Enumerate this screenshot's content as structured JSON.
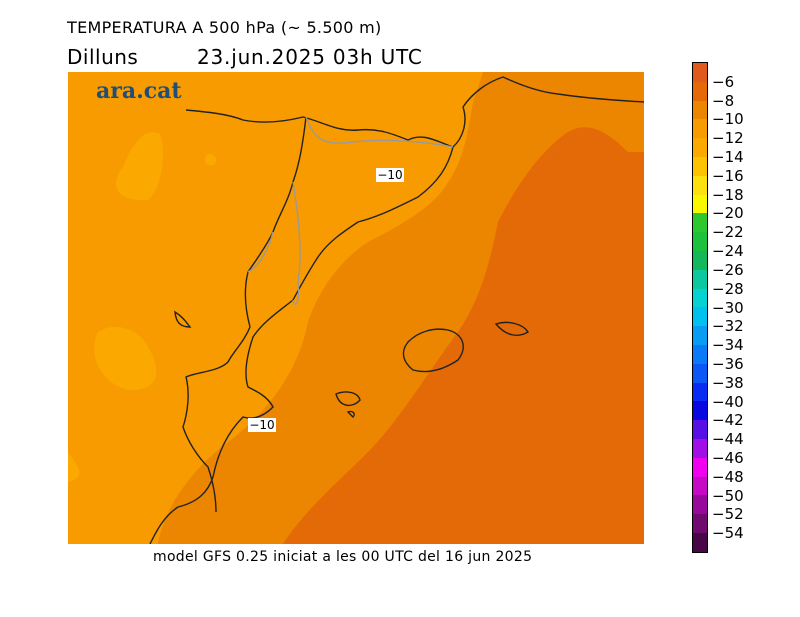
{
  "header": {
    "title": "TEMPERATURA A 500 hPa (~ 5.500 m)",
    "day": "Dilluns",
    "datetime": "23.jun.2025  03h  UTC"
  },
  "map": {
    "logo": "ara.cat",
    "contour_labels": [
      "−10",
      "−10"
    ]
  },
  "footer": {
    "model_note": "model GFS 0.25 iniciat a les 00 UTC del 16 jun 2025"
  },
  "colorbar": {
    "labels": [
      "−6",
      "−8",
      "−10",
      "−12",
      "−14",
      "−16",
      "−18",
      "−20",
      "−22",
      "−24",
      "−26",
      "−28",
      "−30",
      "−32",
      "−34",
      "−36",
      "−38",
      "−40",
      "−42",
      "−44",
      "−46",
      "−48",
      "−50",
      "−52",
      "−54"
    ],
    "colors": [
      "#e05a1e",
      "#e46a08",
      "#ec8600",
      "#f79b00",
      "#fba900",
      "#fdc200",
      "#fedf10",
      "#f8f800",
      "#2ec82e",
      "#1cc23c",
      "#12b85a",
      "#0cc89e",
      "#06d2d2",
      "#00c0ee",
      "#089cf2",
      "#0a7af6",
      "#0c58f6",
      "#0a2cf2",
      "#0808e2",
      "#5810e6",
      "#a010e6",
      "#f000ee",
      "#c40ac4",
      "#98089a",
      "#700a6e",
      "#480848"
    ]
  }
}
